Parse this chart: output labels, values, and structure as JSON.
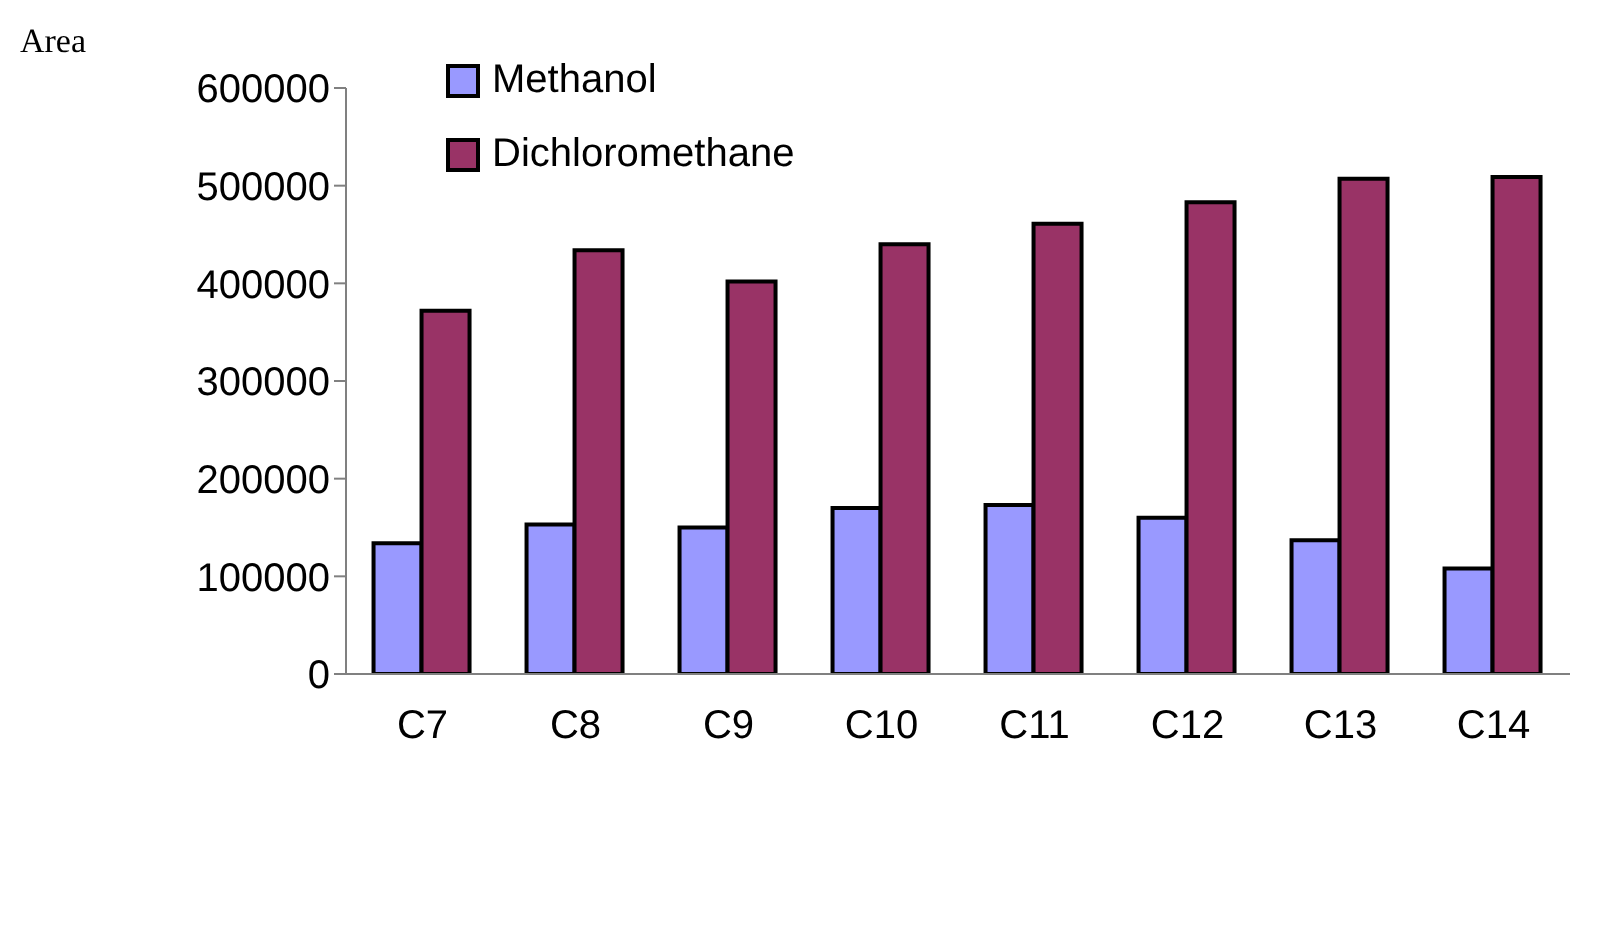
{
  "chart_data": {
    "type": "bar",
    "ylabel": "Area",
    "categories": [
      "C7",
      "C8",
      "C9",
      "C10",
      "C11",
      "C12",
      "C13",
      "C14"
    ],
    "series": [
      {
        "name": "Methanol",
        "color": "#9999ff",
        "values": [
          134000,
          153000,
          150000,
          170000,
          173000,
          160000,
          137000,
          108000
        ]
      },
      {
        "name": "Dichloromethane",
        "color": "#993366",
        "values": [
          372000,
          434000,
          402000,
          440000,
          461000,
          483000,
          507000,
          509000
        ]
      }
    ],
    "ylim": [
      0,
      600000
    ],
    "yticks": [
      0,
      100000,
      200000,
      300000,
      400000,
      500000,
      600000
    ],
    "grid": false,
    "legend": "top left"
  }
}
